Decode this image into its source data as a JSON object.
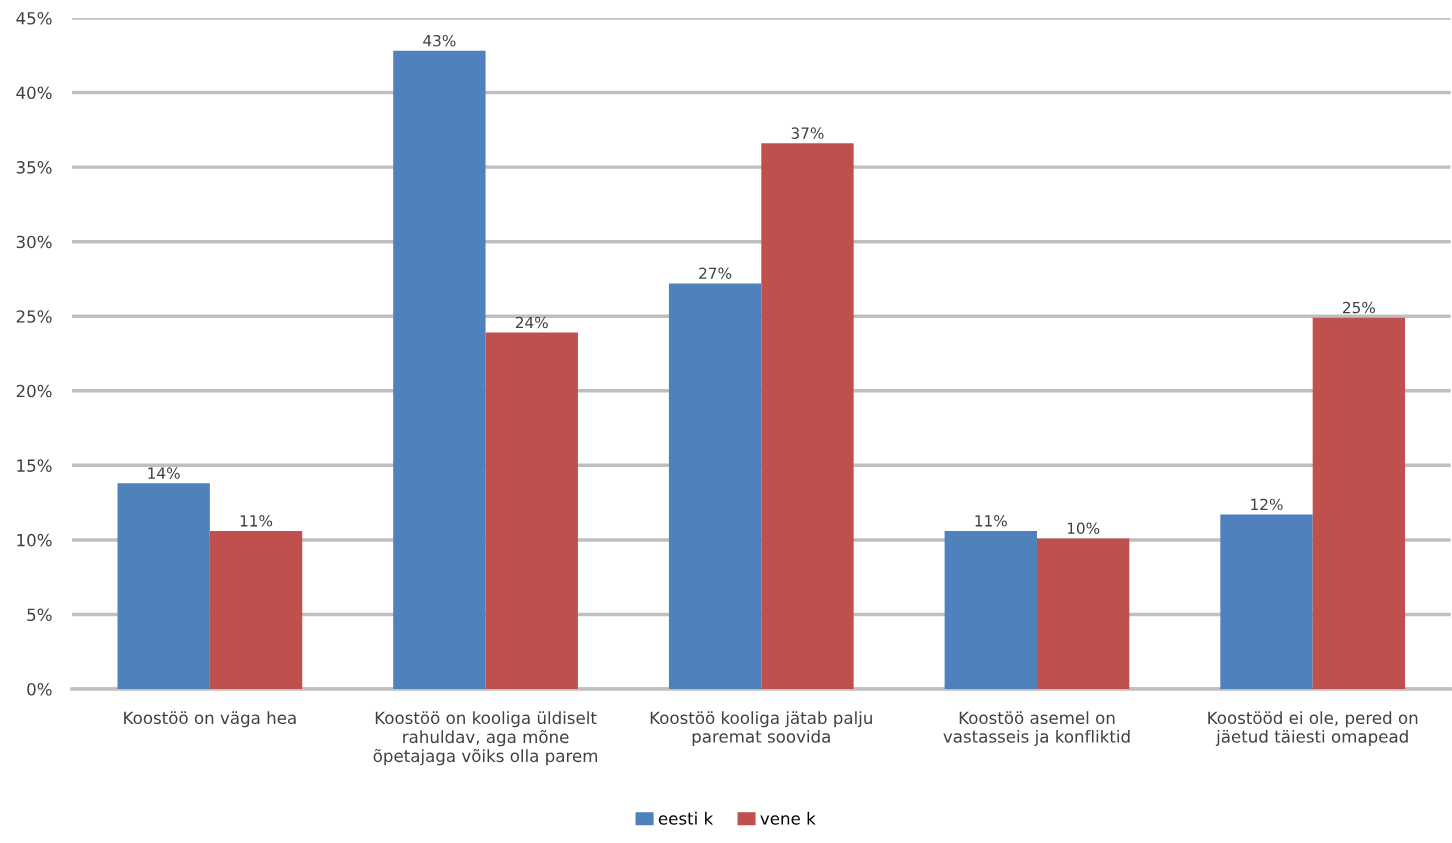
{
  "chart_data": {
    "type": "bar",
    "categories": [
      "Koostöö on väga hea",
      "Koostöö on kooliga üldiselt\nrahuldav, aga mõne\nõpetajaga võiks olla parem",
      "Koostöö kooliga jätab palju\nparemat soovida",
      "Koostöö asemel on\nvastasseis ja konfliktid",
      "Koostööd ei ole, pered on\njäetud täiesti omapead"
    ],
    "series": [
      {
        "name": "eesti k",
        "color": "#4f81bd",
        "values": [
          13.8,
          42.8,
          27.2,
          10.6,
          11.7
        ],
        "value_labels": [
          "14%",
          "43%",
          "27%",
          "11%",
          "12%"
        ]
      },
      {
        "name": "vene k",
        "color": "#c0504d",
        "values": [
          10.6,
          23.9,
          36.6,
          10.1,
          24.9
        ],
        "value_labels": [
          "11%",
          "24%",
          "37%",
          "10%",
          "25%"
        ]
      }
    ],
    "ylim": [
      0,
      45
    ],
    "yticks": [
      {
        "value": 0,
        "label": "0%"
      },
      {
        "value": 5,
        "label": "5%"
      },
      {
        "value": 10,
        "label": "10%"
      },
      {
        "value": 15,
        "label": "15%"
      },
      {
        "value": 20,
        "label": "20%"
      },
      {
        "value": 25,
        "label": "25%"
      },
      {
        "value": 30,
        "label": "30%"
      },
      {
        "value": 35,
        "label": "35%"
      },
      {
        "value": 40,
        "label": "40%"
      },
      {
        "value": 45,
        "label": "45%"
      }
    ],
    "grid": "y",
    "legend": "bottom"
  }
}
